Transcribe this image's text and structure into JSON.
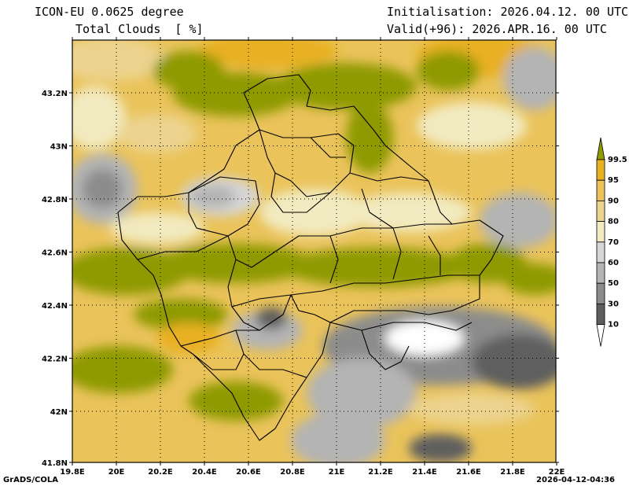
{
  "header": {
    "model": "ICON-EU 0.0625 degree",
    "variable": "Total Clouds  [ %]",
    "init": "Initialisation: 2026.04.12. 00 UTC",
    "valid": "Valid(+96): 2026.APR.16. 00 UTC"
  },
  "footer": {
    "credit": "GrADS/COLA",
    "timestamp": "2026-04-12-04:36"
  },
  "map": {
    "lon_labels": [
      "19.8E",
      "20E",
      "20.2E",
      "20.4E",
      "20.6E",
      "20.8E",
      "21E",
      "21.2E",
      "21.4E",
      "21.6E",
      "21.8E",
      "22E"
    ],
    "lat_labels": [
      "43.2N",
      "43N",
      "42.8N",
      "42.6N",
      "42.4N",
      "42.2N",
      "42N",
      "41.8N"
    ]
  },
  "legend": {
    "labels": [
      "99.5",
      "95",
      "90",
      "80",
      "70",
      "60",
      "50",
      "30",
      "10"
    ],
    "colors": [
      "#8e9a00",
      "#e8b022",
      "#eac35a",
      "#ecd38e",
      "#f2eac0",
      "#d6d6d6",
      "#b4b4b4",
      "#8c8c8c",
      "#5e5e5e",
      "#ffffff"
    ]
  }
}
